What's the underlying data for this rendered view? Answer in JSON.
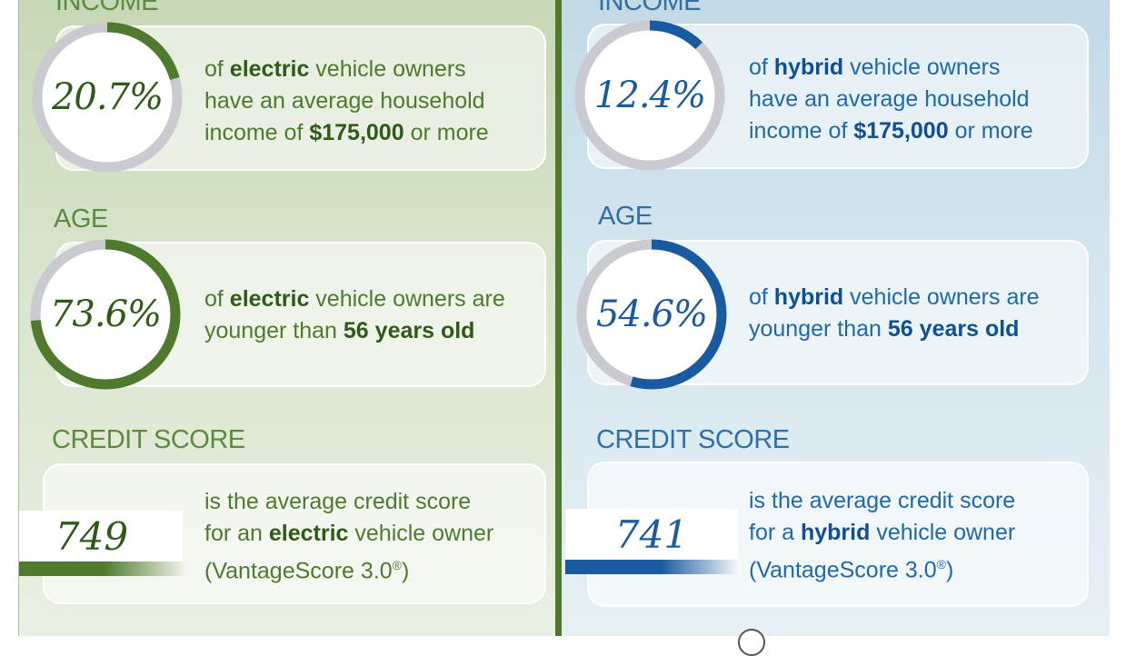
{
  "colors": {
    "electric_accent": "#4f7a2e",
    "hybrid_accent": "#1a5aa0",
    "ring_track": "#c9cbd0"
  },
  "electric": {
    "income": {
      "heading": "INCOME",
      "value": "20.7%",
      "fraction": 0.207,
      "line1_pre": "of ",
      "line1_bold": "electric",
      "line1_post": " vehicle owners",
      "line2": "have an average household",
      "line3_pre": "income of ",
      "line3_bold": "$175,000",
      "line3_post": " or more"
    },
    "age": {
      "heading": "AGE",
      "value": "73.6%",
      "fraction": 0.736,
      "line1_pre": "of ",
      "line1_bold": "electric",
      "line1_post": " vehicle owners are",
      "line2_pre": "younger than ",
      "line2_bold": "56 years old"
    },
    "credit": {
      "heading": "CREDIT SCORE",
      "value": "749",
      "line1": "is the average credit score",
      "line2_pre": "for an ",
      "line2_bold": "electric",
      "line2_post": " vehicle owner",
      "line3": "(VantageScore 3.0",
      "line3_sup": "®",
      "line3_post": ")"
    }
  },
  "hybrid": {
    "income": {
      "heading": "INCOME",
      "value": "12.4%",
      "fraction": 0.124,
      "line1_pre": "of ",
      "line1_bold": "hybrid",
      "line1_post": " vehicle owners",
      "line2": "have an average household",
      "line3_pre": "income of ",
      "line3_bold": "$175,000",
      "line3_post": " or more"
    },
    "age": {
      "heading": "AGE",
      "value": "54.6%",
      "fraction": 0.546,
      "line1_pre": "of ",
      "line1_bold": "hybrid",
      "line1_post": " vehicle owners are",
      "line2_pre": "younger than ",
      "line2_bold": "56 years old"
    },
    "credit": {
      "heading": "CREDIT SCORE",
      "value": "741",
      "line1": "is the average credit score",
      "line2_pre": "for a ",
      "line2_bold": "hybrid",
      "line2_post": " vehicle owner",
      "line3": "(VantageScore 3.0",
      "line3_sup": "®",
      "line3_post": ")"
    }
  }
}
